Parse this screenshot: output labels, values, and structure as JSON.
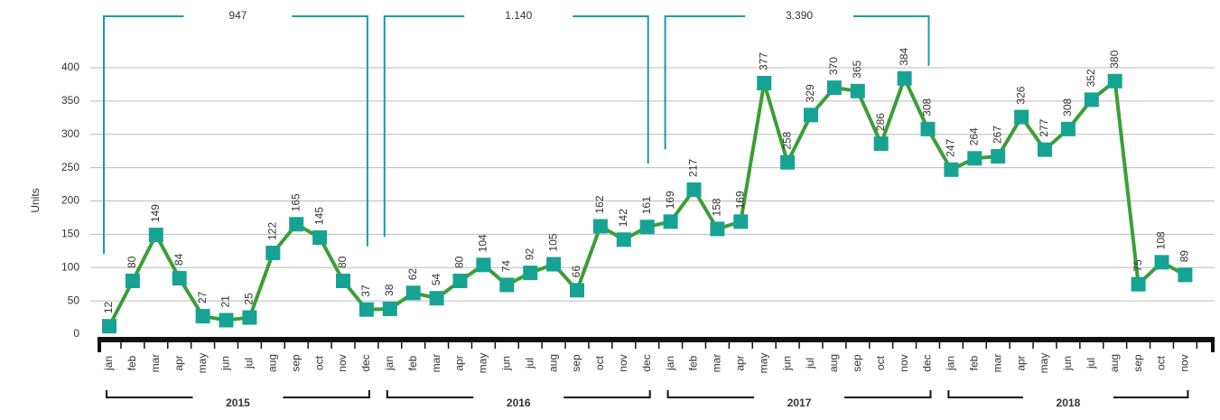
{
  "chart_data": {
    "type": "line",
    "y_axis_label": "Units",
    "categories": [
      "jan",
      "feb",
      "mar",
      "apr",
      "may",
      "jun",
      "jul",
      "aug",
      "sep",
      "oct",
      "nov",
      "dec",
      "jan",
      "feb",
      "mar",
      "apr",
      "may",
      "jun",
      "jul",
      "aug",
      "sep",
      "oct",
      "nov",
      "dec",
      "jan",
      "feb",
      "mar",
      "apr",
      "may",
      "jun",
      "jul",
      "aug",
      "sep",
      "oct",
      "nov",
      "dec",
      "jan",
      "feb",
      "mar",
      "apr",
      "may",
      "jun",
      "jul",
      "aug",
      "sep",
      "oct",
      "nov"
    ],
    "series": [
      {
        "color": "#3c9e35",
        "marker_color": "#16a394",
        "values": [
          12,
          80,
          149,
          84,
          27,
          21,
          25,
          122,
          165,
          145,
          80,
          37,
          38,
          62,
          54,
          80,
          104,
          74,
          92,
          105,
          66,
          162,
          142,
          161,
          169,
          217,
          158,
          169,
          377,
          258,
          329,
          370,
          365,
          286,
          384,
          308,
          247,
          264,
          267,
          326,
          277,
          308,
          352,
          380,
          75,
          108,
          89
        ]
      }
    ],
    "years": [
      "2015",
      "2016",
      "2017",
      "2018"
    ],
    "year_totals": [
      "947",
      "1.140",
      "3.390"
    ],
    "ylim": [
      0,
      400
    ],
    "yticks": [
      0,
      50,
      100,
      150,
      200,
      250,
      300,
      350,
      400
    ],
    "grid": true
  }
}
